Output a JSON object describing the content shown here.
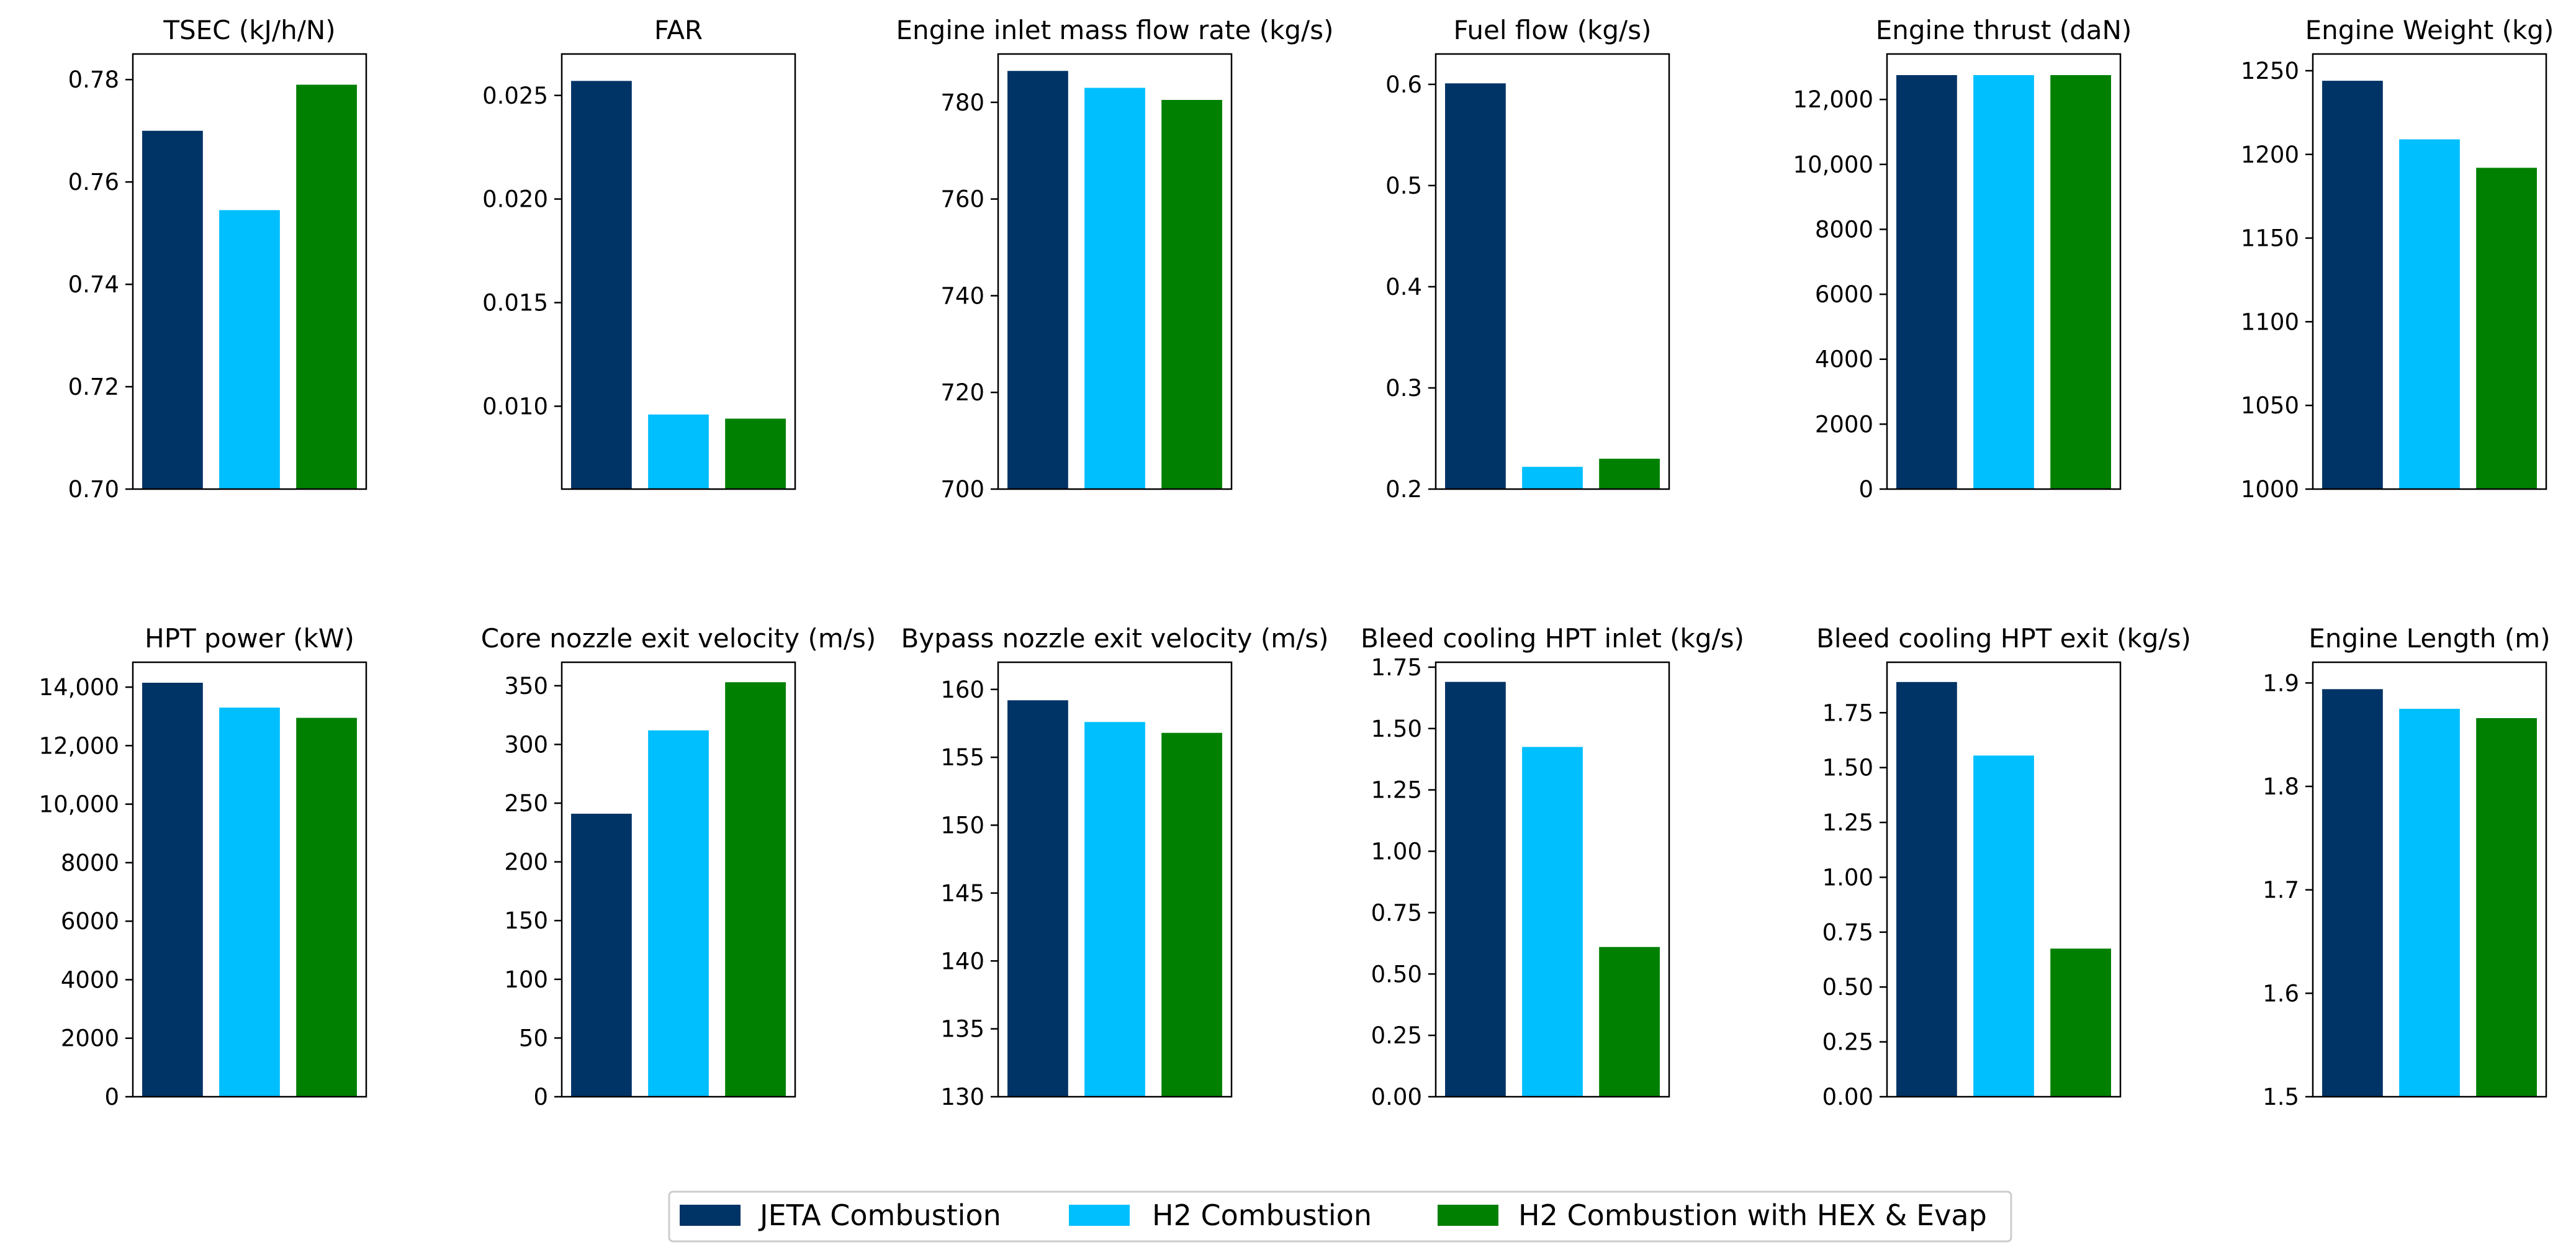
{
  "series_colors": [
    "#003366",
    "#00bfff",
    "#008000"
  ],
  "legend": {
    "entries": [
      "JETA Combustion",
      "H2 Combustion",
      "H2 Combustion with HEX & Evap"
    ]
  },
  "chart_data": [
    {
      "type": "bar",
      "title": "TSEC (kJ/h/N)",
      "categories": [
        "JETA Combustion",
        "H2 Combustion",
        "H2 Combustion with HEX & Evap"
      ],
      "values": [
        0.77,
        0.7545,
        0.779
      ],
      "ylim": [
        0.7,
        0.785
      ],
      "yticks": [
        0.7,
        0.72,
        0.74,
        0.76,
        0.78
      ],
      "ytick_labels": [
        "0.70",
        "0.72",
        "0.74",
        "0.76",
        "0.78"
      ]
    },
    {
      "type": "bar",
      "title": "FAR",
      "categories": [
        "JETA Combustion",
        "H2 Combustion",
        "H2 Combustion with HEX & Evap"
      ],
      "values": [
        0.0257,
        0.0096,
        0.0094
      ],
      "ylim": [
        0.006,
        0.027
      ],
      "yticks": [
        0.01,
        0.015,
        0.02,
        0.025
      ],
      "ytick_labels": [
        "0.010",
        "0.015",
        "0.020",
        "0.025"
      ]
    },
    {
      "type": "bar",
      "title": "Engine inlet mass flow rate (kg/s)",
      "categories": [
        "JETA Combustion",
        "H2 Combustion",
        "H2 Combustion with HEX & Evap"
      ],
      "values": [
        786.5,
        783,
        780.5
      ],
      "ylim": [
        700,
        790
      ],
      "yticks": [
        700,
        720,
        740,
        760,
        780
      ],
      "ytick_labels": [
        "700",
        "720",
        "740",
        "760",
        "780"
      ]
    },
    {
      "type": "bar",
      "title": "Fuel flow (kg/s)",
      "categories": [
        "JETA Combustion",
        "H2 Combustion",
        "H2 Combustion with HEX & Evap"
      ],
      "values": [
        0.601,
        0.222,
        0.23
      ],
      "ylim": [
        0.2,
        0.63
      ],
      "yticks": [
        0.2,
        0.3,
        0.4,
        0.5,
        0.6
      ],
      "ytick_labels": [
        "0.2",
        "0.3",
        "0.4",
        "0.5",
        "0.6"
      ]
    },
    {
      "type": "bar",
      "title": "Engine thrust (daN)",
      "categories": [
        "JETA Combustion",
        "H2 Combustion",
        "H2 Combustion with HEX & Evap"
      ],
      "values": [
        12750,
        12750,
        12750
      ],
      "ylim": [
        0,
        13400
      ],
      "yticks": [
        0,
        2000,
        4000,
        6000,
        8000,
        10000,
        12000
      ],
      "ytick_labels": [
        "0",
        "2000",
        "4000",
        "6000",
        "8000",
        "10,000",
        "12,000"
      ]
    },
    {
      "type": "bar",
      "title": "Engine Weight (kg)",
      "categories": [
        "JETA Combustion",
        "H2 Combustion",
        "H2 Combustion with HEX & Evap"
      ],
      "values": [
        1244,
        1209,
        1192
      ],
      "ylim": [
        1000,
        1260
      ],
      "yticks": [
        1000,
        1050,
        1100,
        1150,
        1200,
        1250
      ],
      "ytick_labels": [
        "1000",
        "1050",
        "1100",
        "1150",
        "1200",
        "1250"
      ]
    },
    {
      "type": "bar",
      "title": "HPT power (kW)",
      "categories": [
        "JETA Combustion",
        "H2 Combustion",
        "H2 Combustion with HEX & Evap"
      ],
      "values": [
        14150,
        13300,
        12950
      ],
      "ylim": [
        0,
        14850
      ],
      "yticks": [
        0,
        2000,
        4000,
        6000,
        8000,
        10000,
        12000,
        14000
      ],
      "ytick_labels": [
        "0",
        "2000",
        "4000",
        "6000",
        "8000",
        "10,000",
        "12,000",
        "14,000"
      ]
    },
    {
      "type": "bar",
      "title": "Core nozzle exit velocity (m/s)",
      "categories": [
        "JETA Combustion",
        "H2 Combustion",
        "H2 Combustion with HEX & Evap"
      ],
      "values": [
        241,
        312,
        353
      ],
      "ylim": [
        0,
        370
      ],
      "yticks": [
        0,
        50,
        100,
        150,
        200,
        250,
        300,
        350
      ],
      "ytick_labels": [
        "0",
        "50",
        "100",
        "150",
        "200",
        "250",
        "300",
        "350"
      ]
    },
    {
      "type": "bar",
      "title": "Bypass nozzle exit velocity (m/s)",
      "categories": [
        "JETA Combustion",
        "H2 Combustion",
        "H2 Combustion with HEX & Evap"
      ],
      "values": [
        159.2,
        157.6,
        156.8
      ],
      "ylim": [
        130,
        162
      ],
      "yticks": [
        130,
        135,
        140,
        145,
        150,
        155,
        160
      ],
      "ytick_labels": [
        "130",
        "135",
        "140",
        "145",
        "150",
        "155",
        "160"
      ]
    },
    {
      "type": "bar",
      "title": "Bleed cooling HPT inlet (kg/s)",
      "categories": [
        "JETA Combustion",
        "H2 Combustion",
        "H2 Combustion with HEX & Evap"
      ],
      "values": [
        1.69,
        1.425,
        0.61
      ],
      "ylim": [
        0,
        1.77
      ],
      "yticks": [
        0,
        0.25,
        0.5,
        0.75,
        1.0,
        1.25,
        1.5,
        1.75
      ],
      "ytick_labels": [
        "0.00",
        "0.25",
        "0.50",
        "0.75",
        "1.00",
        "1.25",
        "1.50",
        "1.75"
      ]
    },
    {
      "type": "bar",
      "title": "Bleed cooling HPT exit (kg/s)",
      "categories": [
        "JETA Combustion",
        "H2 Combustion",
        "H2 Combustion with HEX & Evap"
      ],
      "values": [
        1.89,
        1.555,
        0.675
      ],
      "ylim": [
        0,
        1.98
      ],
      "yticks": [
        0,
        0.25,
        0.5,
        0.75,
        1.0,
        1.25,
        1.5,
        1.75
      ],
      "ytick_labels": [
        "0.00",
        "0.25",
        "0.50",
        "0.75",
        "1.00",
        "1.25",
        "1.50",
        "1.75"
      ]
    },
    {
      "type": "bar",
      "title": "Engine Length (m)",
      "categories": [
        "JETA Combustion",
        "H2 Combustion",
        "H2 Combustion with HEX & Evap"
      ],
      "values": [
        1.894,
        1.875,
        1.866
      ],
      "ylim": [
        1.5,
        1.92
      ],
      "yticks": [
        1.5,
        1.6,
        1.7,
        1.8,
        1.9
      ],
      "ytick_labels": [
        "1.5",
        "1.6",
        "1.7",
        "1.8",
        "1.9"
      ]
    }
  ]
}
